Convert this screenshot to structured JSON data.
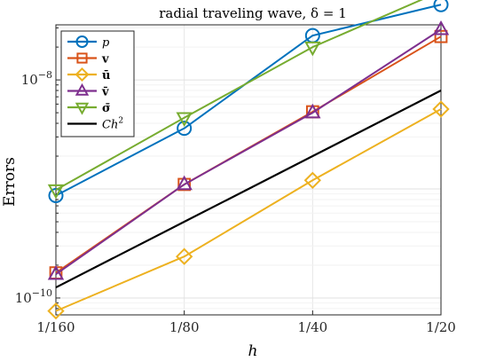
{
  "chart_data": {
    "type": "line",
    "title": "radial traveling wave, δ = 1",
    "xlabel": "h",
    "ylabel": "Errors",
    "x_scale": "log",
    "y_scale": "log",
    "x": [
      0.00625,
      0.0125,
      0.025,
      0.05
    ],
    "x_tick_labels": [
      "1/160",
      "1/80",
      "1/40",
      "1/20"
    ],
    "y_ticks": [
      {
        "value": 1e-08,
        "label": "10",
        "exp": "−8"
      },
      {
        "value": 1e-10,
        "label": "10",
        "exp": "−10"
      }
    ],
    "ylim": [
      7e-11,
      3.2e-08
    ],
    "grid": true,
    "legend_position": "top-left",
    "series": [
      {
        "name": "p",
        "style": "italic",
        "color": "#0072BD",
        "marker": "circle",
        "values": [
          8.7e-10,
          3.6e-09,
          2.55e-08,
          4.9e-08
        ]
      },
      {
        "name": "v",
        "style": "bold",
        "color": "#D95319",
        "marker": "square",
        "values": [
          1.7e-10,
          1.1e-09,
          5.1e-09,
          2.5e-08
        ]
      },
      {
        "name": "ū",
        "style": "bold",
        "color": "#EDB120",
        "marker": "diamond",
        "values": [
          7.6e-11,
          2.4e-10,
          1.2e-09,
          5.4e-09
        ]
      },
      {
        "name": "v̄",
        "style": "bold",
        "color": "#7E2F8E",
        "marker": "triangle-up",
        "values": [
          1.65e-10,
          1.1e-09,
          5e-09,
          2.9e-08
        ]
      },
      {
        "name": "σ̄",
        "style": "bold",
        "color": "#77AC30",
        "marker": "triangle-down",
        "values": [
          9.8e-10,
          4.5e-09,
          2e-08,
          6.5e-08
        ]
      },
      {
        "name": "Ch",
        "superscript": "2",
        "style": "italic",
        "color": "#000000",
        "marker": "none",
        "values": [
          1.25e-10,
          5e-10,
          2e-09,
          8e-09
        ]
      }
    ]
  }
}
